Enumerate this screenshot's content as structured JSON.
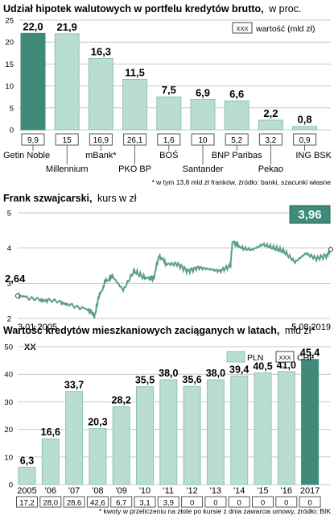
{
  "colors": {
    "bar_main": "#b9ddd1",
    "bar_highlight": "#3f8a79",
    "bar_edge": "#8fc4b3",
    "line": "#5a9e8a",
    "grid": "#c7c7c7",
    "label_box": "#3f8a79"
  },
  "chart_data": [
    {
      "type": "bar",
      "title": "Udział hipotek walutowych w portfelu kredytów brutto,",
      "subtitle": "w proc.",
      "categories": [
        "Getin Noble",
        "Millennium",
        "mBank*",
        "PKO BP",
        "BOŚ",
        "Santander",
        "BNP Paribas",
        "Pekao",
        "ING BSK"
      ],
      "values": [
        22.0,
        21.9,
        16.3,
        11.5,
        7.5,
        6.9,
        6.6,
        2.2,
        0.8
      ],
      "value_labels": [
        "22,0",
        "21,9",
        "16,3",
        "11,5",
        "7,5",
        "6,9",
        "6,6",
        "2,2",
        "0,8"
      ],
      "box_values": [
        "9,9",
        "15",
        "16,9",
        "26,1",
        "1,6",
        "10",
        "5,2",
        "3,2",
        "0,9"
      ],
      "highlight_index": 0,
      "y_ticks": [
        "0",
        "5",
        "10",
        "15",
        "20",
        "25"
      ],
      "ylim": [
        0,
        25
      ],
      "legend_box": "XXX",
      "legend_label": "wartość (mld zł)",
      "footnote": "* w tym 13,8 mld zł franków, źródło: banki, szacunki własne"
    },
    {
      "type": "line",
      "title": "Frank szwajcarski,",
      "subtitle": "kurs w zł",
      "y_ticks": [
        "2",
        "3",
        "4",
        "5"
      ],
      "ylim": [
        2,
        5
      ],
      "x_start_label": "3.01.2005",
      "x_end_label": "5.08.2019",
      "start_value": 2.64,
      "start_label": "2,64",
      "end_value": 3.96,
      "end_label": "3,96",
      "series": [
        {
          "x": [
            "2005-01",
            "2005-06",
            "2006-01",
            "2006-06",
            "2007-01",
            "2007-06",
            "2008-01",
            "2008-06",
            "2008-08",
            "2008-10",
            "2009-02",
            "2009-06",
            "2009-12",
            "2010-06",
            "2010-12",
            "2011-05",
            "2011-08",
            "2011-12",
            "2012-06",
            "2012-12",
            "2013-06",
            "2013-12",
            "2014-06",
            "2014-12",
            "2015-01",
            "2015-06",
            "2015-12",
            "2016-06",
            "2016-12",
            "2017-06",
            "2017-12",
            "2018-06",
            "2018-12",
            "2019-06",
            "2019-08"
          ],
          "y": [
            2.64,
            2.62,
            2.52,
            2.5,
            2.45,
            2.38,
            2.32,
            2.2,
            2.05,
            2.55,
            3.05,
            3.2,
            2.8,
            3.35,
            3.15,
            3.15,
            3.8,
            3.55,
            3.55,
            3.35,
            3.45,
            3.4,
            3.35,
            3.5,
            4.2,
            4.0,
            3.95,
            4.1,
            4.0,
            3.9,
            3.6,
            3.85,
            3.7,
            3.8,
            3.96
          ]
        }
      ]
    },
    {
      "type": "bar",
      "title": "Wartość kredytów mieszkaniowych zaciąganych w latach,",
      "subtitle": "mld zł*",
      "unit_label": "XX",
      "categories": [
        "2005",
        "'06",
        "'07",
        "'08",
        "'09",
        "'10",
        "'11",
        "'12",
        "'13",
        "'14",
        "'15",
        "'16",
        "2017"
      ],
      "values": [
        6.3,
        16.6,
        33.7,
        20.3,
        28.2,
        35.5,
        38.0,
        35.6,
        38.0,
        39.4,
        40.5,
        41.0,
        45.4
      ],
      "value_labels": [
        "6,3",
        "16,6",
        "33,7",
        "20,3",
        "28,2",
        "35,5",
        "38,0",
        "35,6",
        "38,0",
        "39,4",
        "40,5",
        "41,0",
        "45,4"
      ],
      "box_values": [
        "17,2",
        "28,0",
        "28,6",
        "42,6",
        "6,7",
        "3,1",
        "3,9",
        "0",
        "0",
        "0",
        "0",
        "0",
        "0"
      ],
      "highlight_index": 12,
      "y_ticks": [
        "0",
        "10",
        "20",
        "30",
        "40",
        "50"
      ],
      "ylim": [
        0,
        50
      ],
      "legend": [
        {
          "box": "",
          "label": "PLN"
        },
        {
          "box": "XXX",
          "label": "CHF"
        }
      ],
      "footnote": "* kwoty w przeliczeniu na złote po kursie z dnia zawarcia umowy, źródło: BIK"
    }
  ]
}
